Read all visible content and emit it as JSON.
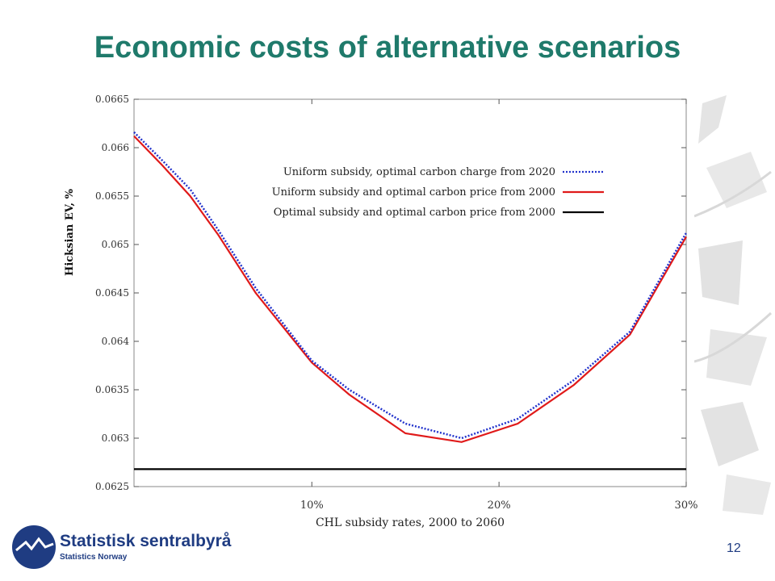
{
  "slide": {
    "title": "Economic costs of alternative scenarios",
    "page_number": "12",
    "logo": {
      "name": "Statistisk sentralbyrå",
      "subtitle": "Statistics Norway"
    }
  },
  "colors": {
    "title": "#1f7a6b",
    "brand": "#1f3c82",
    "series_blue": "#2233cc",
    "series_red": "#e01a1a",
    "series_black": "#000000"
  },
  "chart_data": {
    "type": "line",
    "title": "",
    "xlabel": "CHL subsidy rates, 2000 to 2060",
    "ylabel": "Hicksian EV, %",
    "xlim": [
      0.5,
      30
    ],
    "ylim": [
      0.0625,
      0.0665
    ],
    "x_ticks": [
      {
        "value": 10,
        "label": "10%"
      },
      {
        "value": 20,
        "label": "20%"
      },
      {
        "value": 30,
        "label": "30%"
      }
    ],
    "y_ticks": [
      {
        "value": 0.0625,
        "label": "0.0625"
      },
      {
        "value": 0.063,
        "label": "0.063"
      },
      {
        "value": 0.0635,
        "label": "0.0635"
      },
      {
        "value": 0.064,
        "label": "0.064"
      },
      {
        "value": 0.0645,
        "label": "0.0645"
      },
      {
        "value": 0.065,
        "label": "0.065"
      },
      {
        "value": 0.0655,
        "label": "0.0655"
      },
      {
        "value": 0.066,
        "label": "0.066"
      },
      {
        "value": 0.0665,
        "label": "0.0665"
      }
    ],
    "grid": false,
    "legend": "upper-right",
    "series": [
      {
        "name": "Uniform subsidy, optimal carbon charge from 2020",
        "color": "#2233cc",
        "style": "dotted",
        "x": [
          0.5,
          2,
          3.5,
          5,
          7,
          10,
          12,
          15,
          18,
          21,
          24,
          27,
          30
        ],
        "y": [
          0.06616,
          0.06587,
          0.06557,
          0.06515,
          0.06455,
          0.0638,
          0.0635,
          0.06315,
          0.063,
          0.0632,
          0.0636,
          0.0641,
          0.06512
        ]
      },
      {
        "name": "Uniform subsidy and optimal carbon price from 2000",
        "color": "#e01a1a",
        "style": "solid",
        "x": [
          0.5,
          2,
          3.5,
          5,
          7,
          10,
          12,
          15,
          18,
          21,
          24,
          27,
          30
        ],
        "y": [
          0.06612,
          0.06582,
          0.0655,
          0.0651,
          0.0645,
          0.06378,
          0.06345,
          0.06305,
          0.06296,
          0.06315,
          0.06355,
          0.06407,
          0.06508
        ]
      },
      {
        "name": "Optimal subsidy and optimal carbon price from 2000",
        "color": "#000000",
        "style": "solid",
        "x": [
          0.5,
          30
        ],
        "y": [
          0.06268,
          0.06268
        ]
      }
    ]
  }
}
